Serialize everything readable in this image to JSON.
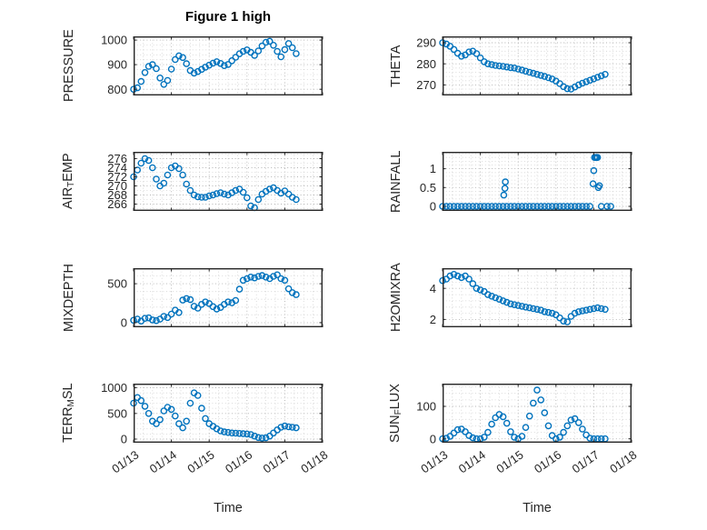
{
  "figure": {
    "title": "Figure 1 high",
    "xlabel": "Time",
    "x_tick_labels": [
      "01/13",
      "01/14",
      "01/15",
      "01/16",
      "01/17",
      "01/18"
    ],
    "x_range_days": [
      0,
      5
    ],
    "marker_color": "#0072BD",
    "axis_color": "#262626",
    "grid_color": "#b3b3b3",
    "minor_grid_color": "#d2d2d2",
    "grid_style": "dotted",
    "marker": "o"
  },
  "chart_data": [
    {
      "name": "PRESSURE",
      "type": "scatter",
      "ylabel_parts": [
        {
          "text": "PRESSURE"
        }
      ],
      "yticks": [
        800,
        900,
        1000
      ],
      "ylim": [
        775,
        1015
      ],
      "x": [
        0,
        0.1,
        0.2,
        0.3,
        0.4,
        0.5,
        0.6,
        0.7,
        0.8,
        0.9,
        1,
        1.1,
        1.2,
        1.3,
        1.4,
        1.5,
        1.6,
        1.7,
        1.8,
        1.9,
        2,
        2.1,
        2.2,
        2.3,
        2.4,
        2.5,
        2.6,
        2.7,
        2.8,
        2.9,
        3,
        3.1,
        3.2,
        3.3,
        3.4,
        3.5,
        3.6,
        3.7,
        3.8,
        3.9,
        4,
        4.1,
        4.2,
        4.3
      ],
      "y": [
        800,
        806,
        832,
        868,
        893,
        900,
        884,
        846,
        820,
        836,
        882,
        921,
        936,
        929,
        904,
        876,
        866,
        872,
        881,
        890,
        898,
        906,
        912,
        905,
        896,
        901,
        916,
        930,
        944,
        954,
        960,
        950,
        938,
        956,
        976,
        991,
        995,
        979,
        954,
        932,
        961,
        986,
        969,
        945
      ]
    },
    {
      "name": "THETA",
      "type": "scatter",
      "ylabel_parts": [
        {
          "text": "THETA"
        }
      ],
      "yticks": [
        270,
        280,
        290
      ],
      "ylim": [
        265,
        293
      ],
      "x": [
        0,
        0.1,
        0.2,
        0.3,
        0.4,
        0.5,
        0.6,
        0.7,
        0.8,
        0.9,
        1,
        1.1,
        1.2,
        1.3,
        1.4,
        1.5,
        1.6,
        1.7,
        1.8,
        1.9,
        2,
        2.1,
        2.2,
        2.3,
        2.4,
        2.5,
        2.6,
        2.7,
        2.8,
        2.9,
        3,
        3.1,
        3.2,
        3.3,
        3.4,
        3.5,
        3.6,
        3.7,
        3.8,
        3.9,
        4,
        4.1,
        4.2,
        4.3
      ],
      "y": [
        290,
        289.4,
        288.3,
        286.8,
        285,
        283.6,
        284.2,
        285.6,
        286,
        284.8,
        282.8,
        281,
        280,
        279.6,
        279.2,
        279,
        278.8,
        278.5,
        278.2,
        278,
        277.5,
        277,
        276.5,
        276,
        275.5,
        275,
        274.5,
        274,
        273.4,
        272.8,
        271.8,
        270.6,
        269.2,
        268.2,
        268,
        269,
        270,
        270.8,
        271.5,
        272.2,
        272.9,
        273.6,
        274.3,
        275
      ]
    },
    {
      "name": "AIR_TEMP",
      "type": "scatter",
      "ylabel_parts": [
        {
          "text": "AIR"
        },
        {
          "text": "T",
          "sub": true
        },
        {
          "text": "EMP"
        }
      ],
      "yticks": [
        266,
        268,
        270,
        272,
        274,
        276
      ],
      "ylim": [
        264.5,
        277.5
      ],
      "x": [
        0,
        0.1,
        0.2,
        0.3,
        0.4,
        0.5,
        0.6,
        0.7,
        0.8,
        0.9,
        1,
        1.1,
        1.2,
        1.3,
        1.4,
        1.5,
        1.6,
        1.7,
        1.8,
        1.9,
        2,
        2.1,
        2.2,
        2.3,
        2.4,
        2.5,
        2.6,
        2.7,
        2.8,
        2.9,
        3,
        3.1,
        3.2,
        3.3,
        3.4,
        3.5,
        3.6,
        3.7,
        3.8,
        3.9,
        4,
        4.1,
        4.2,
        4.3
      ],
      "y": [
        272,
        273.5,
        275,
        276,
        275.6,
        274,
        271.5,
        270,
        270.6,
        272.4,
        274,
        274.4,
        273.8,
        272.4,
        270.4,
        269,
        268,
        267.6,
        267.5,
        267.5,
        267.8,
        268,
        268.3,
        268.5,
        268.2,
        268,
        268.5,
        269,
        269.3,
        268.6,
        267.4,
        265.6,
        265.2,
        267,
        268.2,
        268.8,
        269.3,
        269.6,
        269,
        268.4,
        268.9,
        268.2,
        267.5,
        267
      ]
    },
    {
      "name": "RAINFALL",
      "type": "scatter",
      "ylabel_parts": [
        {
          "text": "RAINFALL"
        }
      ],
      "yticks": [
        0,
        0.5,
        1
      ],
      "ylim": [
        -0.12,
        1.45
      ],
      "x": [
        0,
        0.1,
        0.2,
        0.3,
        0.4,
        0.5,
        0.6,
        0.7,
        0.8,
        0.9,
        1,
        1.1,
        1.2,
        1.3,
        1.4,
        1.5,
        1.6,
        1.7,
        1.8,
        1.9,
        2,
        2.1,
        2.2,
        2.3,
        2.4,
        2.5,
        2.6,
        2.7,
        2.8,
        2.9,
        3,
        3.1,
        3.2,
        3.3,
        3.4,
        3.5,
        3.6,
        3.7,
        3.8,
        1.62,
        1.65,
        1.66,
        3.9,
        3.98,
        4,
        4.02,
        4.05,
        4.07,
        4.1,
        4.12,
        4.15,
        4.2,
        4.35,
        4.45
      ],
      "y": [
        0,
        0,
        0,
        0,
        0,
        0,
        0,
        0,
        0,
        0,
        0,
        0,
        0,
        0,
        0,
        0,
        0,
        0,
        0,
        0,
        0,
        0,
        0,
        0,
        0,
        0,
        0,
        0,
        0,
        0,
        0,
        0,
        0,
        0,
        0,
        0,
        0,
        0,
        0,
        0.3,
        0.48,
        0.65,
        0,
        0.6,
        0.95,
        1.3,
        1.3,
        1.3,
        1.3,
        0.5,
        0.55,
        0,
        0,
        0
      ]
    },
    {
      "name": "MIXDEPTH",
      "type": "scatter",
      "ylabel_parts": [
        {
          "text": "MIXDEPTH"
        }
      ],
      "yticks": [
        0,
        500
      ],
      "ylim": [
        -60,
        700
      ],
      "x": [
        0,
        0.1,
        0.2,
        0.3,
        0.4,
        0.5,
        0.6,
        0.7,
        0.8,
        0.9,
        1,
        1.1,
        1.2,
        1.3,
        1.4,
        1.5,
        1.6,
        1.7,
        1.8,
        1.9,
        2,
        2.1,
        2.2,
        2.3,
        2.4,
        2.5,
        2.6,
        2.7,
        2.8,
        2.9,
        3,
        3.1,
        3.2,
        3.3,
        3.4,
        3.5,
        3.6,
        3.7,
        3.8,
        3.9,
        4,
        4.1,
        4.2,
        4.3
      ],
      "y": [
        30,
        45,
        20,
        55,
        60,
        35,
        25,
        45,
        80,
        65,
        110,
        160,
        130,
        290,
        310,
        295,
        210,
        185,
        235,
        265,
        245,
        205,
        175,
        195,
        235,
        265,
        255,
        285,
        430,
        545,
        565,
        585,
        575,
        595,
        605,
        585,
        565,
        595,
        615,
        565,
        545,
        435,
        385,
        360
      ]
    },
    {
      "name": "H2OMIXRA",
      "type": "scatter",
      "ylabel_parts": [
        {
          "text": "H2OMIXRA"
        }
      ],
      "yticks": [
        2,
        4
      ],
      "ylim": [
        1.5,
        5.3
      ],
      "x": [
        0,
        0.1,
        0.2,
        0.3,
        0.4,
        0.5,
        0.6,
        0.7,
        0.8,
        0.9,
        1,
        1.1,
        1.2,
        1.3,
        1.4,
        1.5,
        1.6,
        1.7,
        1.8,
        1.9,
        2,
        2.1,
        2.2,
        2.3,
        2.4,
        2.5,
        2.6,
        2.7,
        2.8,
        2.9,
        3,
        3.1,
        3.2,
        3.3,
        3.4,
        3.5,
        3.6,
        3.7,
        3.8,
        3.9,
        4,
        4.1,
        4.2,
        4.3
      ],
      "y": [
        4.5,
        4.6,
        4.8,
        4.9,
        4.8,
        4.7,
        4.8,
        4.6,
        4.3,
        4,
        3.9,
        3.8,
        3.6,
        3.5,
        3.4,
        3.3,
        3.2,
        3.1,
        3,
        2.95,
        2.9,
        2.85,
        2.8,
        2.75,
        2.7,
        2.65,
        2.6,
        2.5,
        2.45,
        2.4,
        2.3,
        2.1,
        1.9,
        1.85,
        2.2,
        2.4,
        2.5,
        2.55,
        2.6,
        2.65,
        2.7,
        2.75,
        2.7,
        2.65
      ]
    },
    {
      "name": "TERR_MSL",
      "type": "scatter",
      "ylabel_parts": [
        {
          "text": "TERR"
        },
        {
          "text": "M",
          "sub": true
        },
        {
          "text": "SL"
        }
      ],
      "yticks": [
        0,
        500,
        1000
      ],
      "ylim": [
        -70,
        1080
      ],
      "x": [
        0,
        0.1,
        0.2,
        0.3,
        0.4,
        0.5,
        0.6,
        0.7,
        0.8,
        0.9,
        1,
        1.1,
        1.2,
        1.3,
        1.4,
        1.5,
        1.6,
        1.7,
        1.8,
        1.9,
        2,
        2.1,
        2.2,
        2.3,
        2.4,
        2.5,
        2.6,
        2.7,
        2.8,
        2.9,
        3,
        3.1,
        3.2,
        3.3,
        3.4,
        3.5,
        3.6,
        3.7,
        3.8,
        3.9,
        4,
        4.1,
        4.2,
        4.3
      ],
      "y": [
        700,
        810,
        750,
        640,
        500,
        350,
        300,
        380,
        550,
        620,
        580,
        450,
        300,
        220,
        350,
        700,
        900,
        850,
        600,
        400,
        300,
        250,
        200,
        160,
        140,
        130,
        120,
        115,
        110,
        105,
        100,
        90,
        60,
        30,
        20,
        25,
        60,
        120,
        180,
        230,
        255,
        240,
        230,
        220
      ]
    },
    {
      "name": "SUN_FLUX",
      "type": "scatter",
      "ylabel_parts": [
        {
          "text": "SUN"
        },
        {
          "text": "F",
          "sub": true
        },
        {
          "text": "LUX"
        }
      ],
      "yticks": [
        0,
        100
      ],
      "ylim": [
        -12,
        170
      ],
      "x": [
        0,
        0.1,
        0.2,
        0.3,
        0.4,
        0.5,
        0.6,
        0.7,
        0.8,
        0.9,
        1,
        1.1,
        1.2,
        1.3,
        1.4,
        1.5,
        1.6,
        1.7,
        1.8,
        1.9,
        2,
        2.1,
        2.2,
        2.3,
        2.4,
        2.5,
        2.6,
        2.7,
        2.8,
        2.9,
        3,
        3.1,
        3.2,
        3.3,
        3.4,
        3.5,
        3.6,
        3.7,
        3.8,
        3.9,
        4,
        4.1,
        4.2,
        4.3
      ],
      "y": [
        0,
        2,
        8,
        18,
        28,
        30,
        22,
        10,
        3,
        0,
        0,
        5,
        20,
        45,
        65,
        75,
        68,
        48,
        22,
        5,
        0,
        8,
        35,
        70,
        110,
        150,
        120,
        80,
        40,
        10,
        0,
        5,
        20,
        40,
        58,
        62,
        50,
        30,
        12,
        2,
        0,
        0,
        0,
        0
      ]
    }
  ]
}
